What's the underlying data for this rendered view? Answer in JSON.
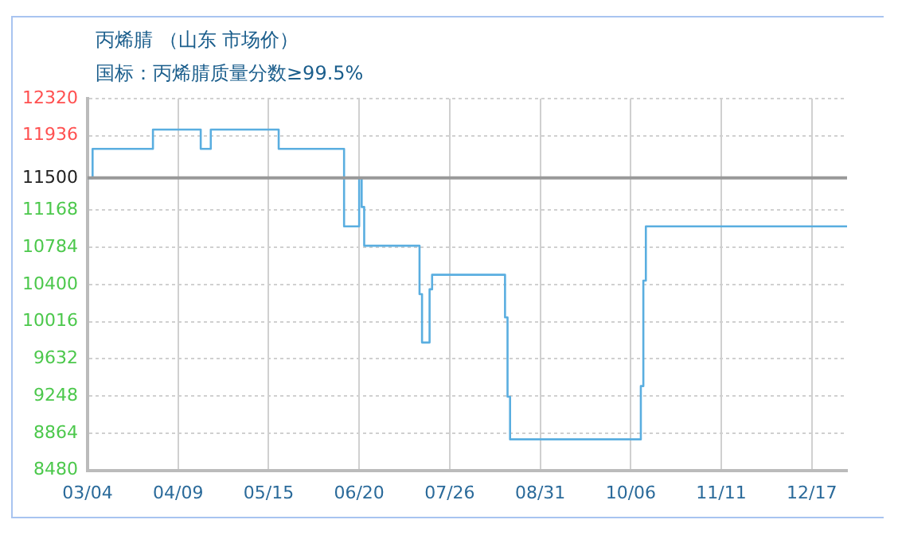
{
  "chart_data": {
    "type": "step",
    "title": "丙烯腈 （山东 市场价）",
    "subtitle": "国标：丙烯腈质量分数≥99.5%",
    "x": [
      "--03-04",
      "--03-06",
      "--03-30",
      "--04-18",
      "--04-22",
      "--05-19",
      "--06-14",
      "--06-20",
      "--06-21",
      "--06-22",
      "--07-14",
      "--07-15",
      "--07-18",
      "--07-19",
      "--08-17",
      "--08-18",
      "--08-19",
      "--10-10",
      "--10-11",
      "--10-12",
      "--12-31"
    ],
    "series": [
      {
        "color": "#5aaee0",
        "values": [
          11500,
          11800,
          12000,
          11800,
          12000,
          11800,
          11000,
          11500,
          11200,
          10800,
          10300,
          9800,
          10350,
          10500,
          10060,
          9240,
          8800,
          9350,
          10440,
          11000,
          11000
        ]
      }
    ],
    "xlim": [
      "--03-04",
      "--12-31"
    ],
    "xticks": [
      {
        "value": "--03-04",
        "label": "03/04"
      },
      {
        "value": "--04-09",
        "label": "04/09"
      },
      {
        "value": "--05-15",
        "label": "05/15"
      },
      {
        "value": "--06-20",
        "label": "06/20"
      },
      {
        "value": "--07-26",
        "label": "07/26"
      },
      {
        "value": "--08-31",
        "label": "08/31"
      },
      {
        "value": "--10-06",
        "label": "10/06"
      },
      {
        "value": "--11-11",
        "label": "11/11"
      },
      {
        "value": "--12-17",
        "label": "12/17"
      }
    ],
    "ylim": [
      8480,
      12320
    ],
    "yticks": [
      8480,
      8864,
      9248,
      9632,
      10016,
      10400,
      10784,
      11168,
      11500,
      11936,
      12320
    ],
    "ref_lines": [
      {
        "axis": "y",
        "value": 11500,
        "color": "#999999"
      }
    ],
    "grid": true,
    "legend": false,
    "marker": "none",
    "line_style": "solid"
  }
}
